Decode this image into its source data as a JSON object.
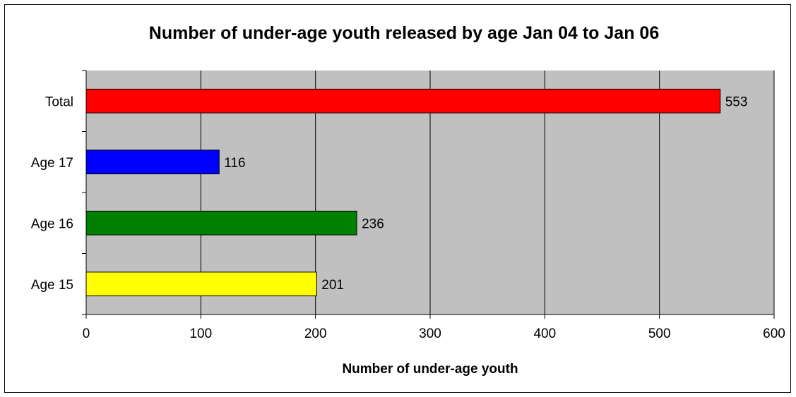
{
  "chart_data": {
    "type": "bar",
    "orientation": "horizontal",
    "title": "Number of under-age youth released by age Jan 04 to Jan 06",
    "xlabel": "Number of under-age youth",
    "ylabel": "",
    "xlim": [
      0,
      600
    ],
    "xticks": [
      "0",
      "100",
      "200",
      "300",
      "400",
      "500",
      "600"
    ],
    "categories": [
      "Total",
      "Age 17",
      "Age 16",
      "Age 15"
    ],
    "values": [
      553,
      116,
      236,
      201
    ],
    "value_labels": [
      "553",
      "116",
      "236",
      "201"
    ],
    "colors": [
      "#ff0000",
      "#0000ff",
      "#008000",
      "#ffff00"
    ],
    "plot_background": "#c0c0c0",
    "grid": "vertical",
    "legend": "none"
  }
}
